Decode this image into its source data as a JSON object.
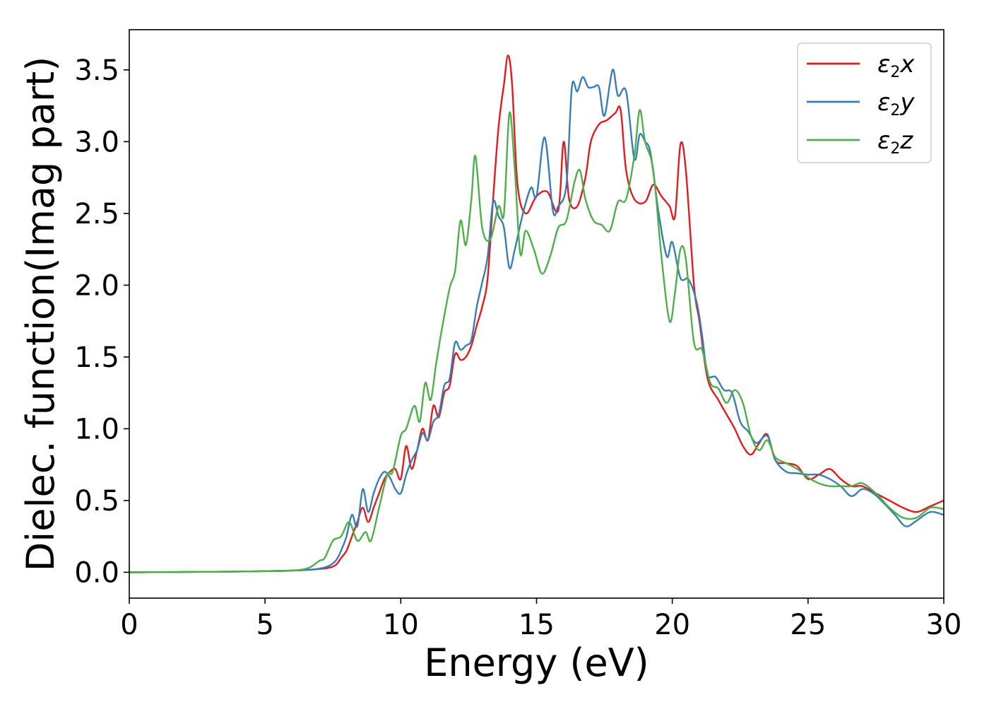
{
  "chart_data": {
    "type": "line",
    "xlabel": "Energy (eV)",
    "ylabel": "Dielec. function(Imag part)",
    "xlim": [
      0,
      30
    ],
    "ylim": [
      -0.18,
      3.78
    ],
    "xticks": [
      0,
      5,
      10,
      15,
      20,
      25,
      30
    ],
    "xtick_labels": [
      "0",
      "5",
      "10",
      "15",
      "20",
      "25",
      "30"
    ],
    "yticks": [
      0.0,
      0.5,
      1.0,
      1.5,
      2.0,
      2.5,
      3.0,
      3.5
    ],
    "ytick_labels": [
      "0.0",
      "0.5",
      "1.0",
      "1.5",
      "2.0",
      "2.5",
      "3.0",
      "3.5"
    ],
    "grid": false,
    "legend_position": "top-right",
    "series": [
      {
        "name": "ε2x",
        "name_base": "ε",
        "name_sub": "2",
        "name_tail": "x",
        "color": "#e41a1c",
        "points": [
          [
            0,
            0
          ],
          [
            2,
            0.002
          ],
          [
            4,
            0.005
          ],
          [
            5,
            0.008
          ],
          [
            6,
            0.012
          ],
          [
            6.8,
            0.02
          ],
          [
            7.3,
            0.03
          ],
          [
            7.6,
            0.05
          ],
          [
            7.8,
            0.1
          ],
          [
            8,
            0.15
          ],
          [
            8.2,
            0.25
          ],
          [
            8.4,
            0.35
          ],
          [
            8.6,
            0.45
          ],
          [
            8.8,
            0.35
          ],
          [
            9,
            0.45
          ],
          [
            9.2,
            0.55
          ],
          [
            9.4,
            0.65
          ],
          [
            9.6,
            0.7
          ],
          [
            9.8,
            0.72
          ],
          [
            10,
            0.65
          ],
          [
            10.2,
            0.88
          ],
          [
            10.4,
            0.72
          ],
          [
            10.6,
            0.85
          ],
          [
            10.8,
            1.0
          ],
          [
            11,
            0.92
          ],
          [
            11.2,
            1.16
          ],
          [
            11.4,
            1.08
          ],
          [
            11.6,
            1.25
          ],
          [
            11.8,
            1.3
          ],
          [
            12,
            1.52
          ],
          [
            12.2,
            1.48
          ],
          [
            12.4,
            1.5
          ],
          [
            12.6,
            1.58
          ],
          [
            12.8,
            1.72
          ],
          [
            13,
            1.85
          ],
          [
            13.2,
            2.05
          ],
          [
            13.4,
            2.6
          ],
          [
            13.6,
            3.1
          ],
          [
            13.8,
            3.4
          ],
          [
            13.95,
            3.6
          ],
          [
            14.1,
            3.4
          ],
          [
            14.3,
            2.7
          ],
          [
            14.6,
            2.5
          ],
          [
            15,
            2.62
          ],
          [
            15.4,
            2.65
          ],
          [
            15.8,
            2.52
          ],
          [
            16,
            3.0
          ],
          [
            16.2,
            2.6
          ],
          [
            16.5,
            2.55
          ],
          [
            16.8,
            2.75
          ],
          [
            17,
            3.0
          ],
          [
            17.3,
            3.12
          ],
          [
            17.6,
            3.15
          ],
          [
            17.9,
            3.2
          ],
          [
            18.1,
            3.22
          ],
          [
            18.3,
            2.8
          ],
          [
            18.6,
            2.6
          ],
          [
            19,
            2.58
          ],
          [
            19.3,
            2.7
          ],
          [
            19.6,
            2.62
          ],
          [
            19.9,
            2.55
          ],
          [
            20.1,
            2.48
          ],
          [
            20.3,
            2.98
          ],
          [
            20.5,
            2.8
          ],
          [
            20.8,
            2.0
          ],
          [
            21,
            1.75
          ],
          [
            21.3,
            1.35
          ],
          [
            21.7,
            1.2
          ],
          [
            22,
            1.1
          ],
          [
            22.3,
            1.0
          ],
          [
            22.6,
            0.88
          ],
          [
            22.9,
            0.82
          ],
          [
            23.2,
            0.9
          ],
          [
            23.5,
            0.96
          ],
          [
            23.8,
            0.78
          ],
          [
            24.2,
            0.76
          ],
          [
            24.6,
            0.74
          ],
          [
            25,
            0.65
          ],
          [
            25.4,
            0.68
          ],
          [
            25.8,
            0.72
          ],
          [
            26.2,
            0.65
          ],
          [
            26.6,
            0.6
          ],
          [
            27,
            0.6
          ],
          [
            27.5,
            0.55
          ],
          [
            28,
            0.5
          ],
          [
            28.5,
            0.45
          ],
          [
            29,
            0.42
          ],
          [
            29.5,
            0.46
          ],
          [
            30,
            0.5
          ]
        ]
      },
      {
        "name": "ε2y",
        "name_base": "ε",
        "name_sub": "2",
        "name_tail": "y",
        "color": "#377eb8",
        "points": [
          [
            0,
            0
          ],
          [
            2,
            0.002
          ],
          [
            4,
            0.005
          ],
          [
            5,
            0.008
          ],
          [
            6,
            0.012
          ],
          [
            6.8,
            0.02
          ],
          [
            7.3,
            0.04
          ],
          [
            7.6,
            0.08
          ],
          [
            7.8,
            0.15
          ],
          [
            8,
            0.25
          ],
          [
            8.2,
            0.4
          ],
          [
            8.4,
            0.32
          ],
          [
            8.6,
            0.58
          ],
          [
            8.8,
            0.42
          ],
          [
            9,
            0.55
          ],
          [
            9.2,
            0.65
          ],
          [
            9.4,
            0.7
          ],
          [
            9.6,
            0.66
          ],
          [
            9.8,
            0.58
          ],
          [
            10,
            0.55
          ],
          [
            10.2,
            0.68
          ],
          [
            10.4,
            0.78
          ],
          [
            10.6,
            0.85
          ],
          [
            10.8,
            0.97
          ],
          [
            11,
            0.92
          ],
          [
            11.2,
            1.05
          ],
          [
            11.4,
            1.1
          ],
          [
            11.6,
            1.3
          ],
          [
            11.8,
            1.35
          ],
          [
            12,
            1.6
          ],
          [
            12.2,
            1.55
          ],
          [
            12.4,
            1.58
          ],
          [
            12.6,
            1.62
          ],
          [
            12.8,
            1.85
          ],
          [
            13,
            2.02
          ],
          [
            13.2,
            2.2
          ],
          [
            13.4,
            2.58
          ],
          [
            13.6,
            2.48
          ],
          [
            13.8,
            2.4
          ],
          [
            14,
            2.12
          ],
          [
            14.2,
            2.25
          ],
          [
            14.5,
            2.5
          ],
          [
            14.8,
            2.68
          ],
          [
            15,
            2.62
          ],
          [
            15.3,
            3.03
          ],
          [
            15.6,
            2.52
          ],
          [
            15.8,
            2.55
          ],
          [
            16.1,
            2.7
          ],
          [
            16.3,
            3.38
          ],
          [
            16.5,
            3.35
          ],
          [
            16.7,
            3.45
          ],
          [
            16.9,
            3.38
          ],
          [
            17.1,
            3.38
          ],
          [
            17.3,
            3.38
          ],
          [
            17.5,
            3.18
          ],
          [
            17.8,
            3.5
          ],
          [
            18,
            3.32
          ],
          [
            18.3,
            3.35
          ],
          [
            18.6,
            2.88
          ],
          [
            18.8,
            3.05
          ],
          [
            19,
            3.0
          ],
          [
            19.2,
            2.92
          ],
          [
            19.5,
            2.5
          ],
          [
            19.8,
            2.2
          ],
          [
            20,
            2.3
          ],
          [
            20.3,
            2.05
          ],
          [
            20.6,
            2.04
          ],
          [
            20.9,
            1.88
          ],
          [
            21.1,
            1.65
          ],
          [
            21.3,
            1.38
          ],
          [
            21.6,
            1.36
          ],
          [
            21.9,
            1.27
          ],
          [
            22.2,
            1.25
          ],
          [
            22.5,
            1.05
          ],
          [
            22.8,
            0.98
          ],
          [
            23.1,
            0.9
          ],
          [
            23.5,
            0.95
          ],
          [
            23.8,
            0.78
          ],
          [
            24.2,
            0.7
          ],
          [
            24.6,
            0.69
          ],
          [
            25,
            0.68
          ],
          [
            25.4,
            0.68
          ],
          [
            25.8,
            0.65
          ],
          [
            26.2,
            0.6
          ],
          [
            26.6,
            0.53
          ],
          [
            27,
            0.58
          ],
          [
            27.4,
            0.55
          ],
          [
            27.8,
            0.48
          ],
          [
            28.2,
            0.4
          ],
          [
            28.6,
            0.32
          ],
          [
            29,
            0.36
          ],
          [
            29.5,
            0.42
          ],
          [
            30,
            0.4
          ]
        ]
      },
      {
        "name": "ε2z",
        "name_base": "ε",
        "name_sub": "2",
        "name_tail": "z",
        "color": "#4daf4a",
        "points": [
          [
            0,
            0
          ],
          [
            2,
            0.002
          ],
          [
            4,
            0.005
          ],
          [
            5,
            0.008
          ],
          [
            6,
            0.012
          ],
          [
            6.6,
            0.03
          ],
          [
            7,
            0.08
          ],
          [
            7.2,
            0.1
          ],
          [
            7.5,
            0.22
          ],
          [
            7.8,
            0.25
          ],
          [
            8.1,
            0.35
          ],
          [
            8.4,
            0.22
          ],
          [
            8.7,
            0.28
          ],
          [
            8.9,
            0.22
          ],
          [
            9.2,
            0.45
          ],
          [
            9.5,
            0.68
          ],
          [
            9.7,
            0.7
          ],
          [
            10,
            0.95
          ],
          [
            10.2,
            1.0
          ],
          [
            10.5,
            1.16
          ],
          [
            10.7,
            1.05
          ],
          [
            10.9,
            1.32
          ],
          [
            11.1,
            1.2
          ],
          [
            11.3,
            1.45
          ],
          [
            11.5,
            1.68
          ],
          [
            11.8,
            1.98
          ],
          [
            12,
            2.1
          ],
          [
            12.2,
            2.45
          ],
          [
            12.4,
            2.28
          ],
          [
            12.6,
            2.6
          ],
          [
            12.75,
            2.9
          ],
          [
            13,
            2.4
          ],
          [
            13.3,
            2.32
          ],
          [
            13.6,
            2.55
          ],
          [
            13.8,
            2.5
          ],
          [
            14,
            3.2
          ],
          [
            14.2,
            2.8
          ],
          [
            14.4,
            2.22
          ],
          [
            14.6,
            2.38
          ],
          [
            14.9,
            2.25
          ],
          [
            15.2,
            2.08
          ],
          [
            15.5,
            2.2
          ],
          [
            15.8,
            2.4
          ],
          [
            16.1,
            2.45
          ],
          [
            16.4,
            2.72
          ],
          [
            16.6,
            2.8
          ],
          [
            16.8,
            2.6
          ],
          [
            17.1,
            2.45
          ],
          [
            17.4,
            2.42
          ],
          [
            17.7,
            2.38
          ],
          [
            18,
            2.58
          ],
          [
            18.3,
            2.6
          ],
          [
            18.6,
            2.9
          ],
          [
            18.8,
            3.22
          ],
          [
            19,
            3.0
          ],
          [
            19.3,
            2.8
          ],
          [
            19.6,
            2.2
          ],
          [
            19.9,
            1.75
          ],
          [
            20.1,
            1.95
          ],
          [
            20.3,
            2.25
          ],
          [
            20.5,
            2.18
          ],
          [
            20.8,
            1.6
          ],
          [
            21.1,
            1.55
          ],
          [
            21.4,
            1.32
          ],
          [
            21.7,
            1.28
          ],
          [
            22,
            1.18
          ],
          [
            22.3,
            1.27
          ],
          [
            22.6,
            1.18
          ],
          [
            22.9,
            0.95
          ],
          [
            23.2,
            0.85
          ],
          [
            23.5,
            0.92
          ],
          [
            23.8,
            0.8
          ],
          [
            24.2,
            0.76
          ],
          [
            24.6,
            0.72
          ],
          [
            25,
            0.66
          ],
          [
            25.4,
            0.62
          ],
          [
            25.8,
            0.6
          ],
          [
            26.2,
            0.6
          ],
          [
            26.6,
            0.6
          ],
          [
            27,
            0.62
          ],
          [
            27.5,
            0.55
          ],
          [
            28,
            0.45
          ],
          [
            28.5,
            0.38
          ],
          [
            29,
            0.38
          ],
          [
            29.5,
            0.45
          ],
          [
            30,
            0.44
          ]
        ]
      }
    ]
  }
}
